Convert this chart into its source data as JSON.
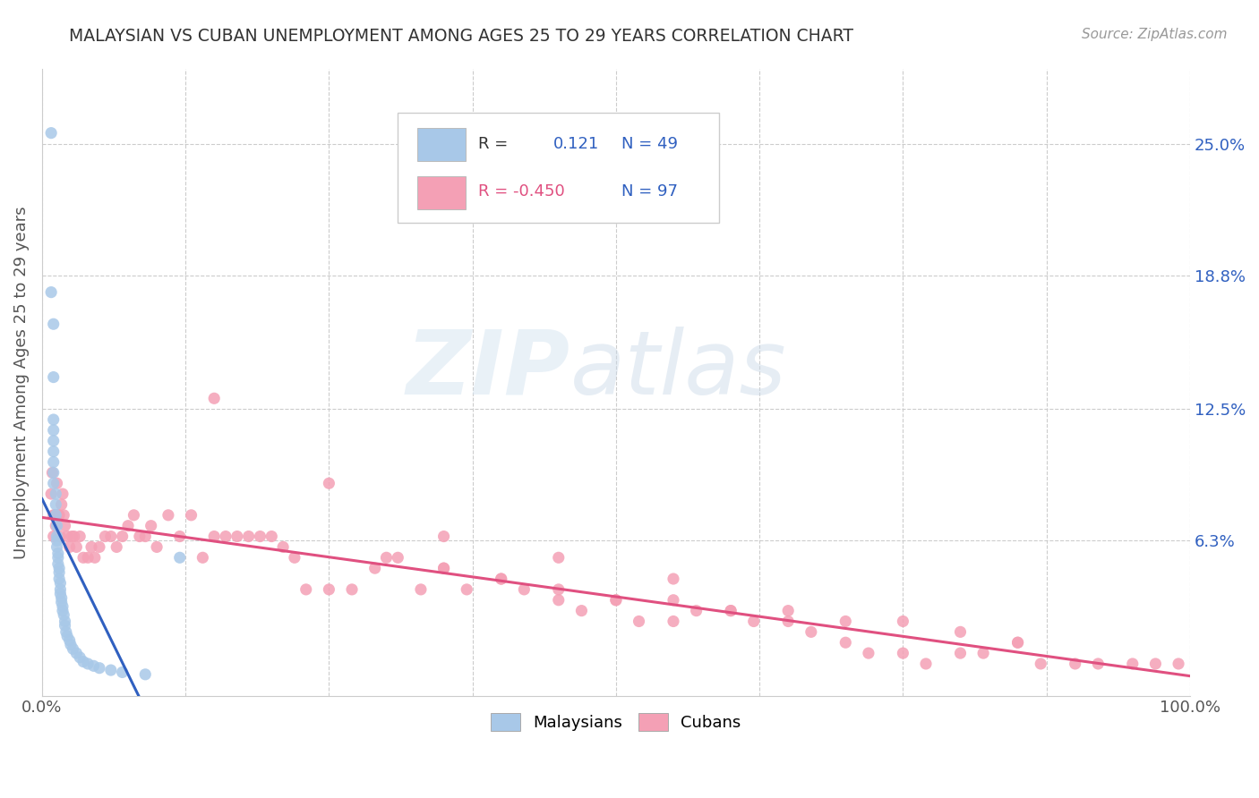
{
  "title": "MALAYSIAN VS CUBAN UNEMPLOYMENT AMONG AGES 25 TO 29 YEARS CORRELATION CHART",
  "source": "Source: ZipAtlas.com",
  "ylabel": "Unemployment Among Ages 25 to 29 years",
  "ytick_labels": [
    "25.0%",
    "18.8%",
    "12.5%",
    "6.3%"
  ],
  "ytick_values": [
    0.25,
    0.188,
    0.125,
    0.063
  ],
  "xlim": [
    0.0,
    1.0
  ],
  "ylim": [
    -0.01,
    0.285
  ],
  "malay_color": "#A8C8E8",
  "cuban_color": "#F4A0B5",
  "malay_line_color": "#3060C0",
  "cuban_line_color": "#E05080",
  "trend_dash_color": "#AABBD0",
  "background_color": "#FFFFFF",
  "malaysians_x": [
    0.008,
    0.008,
    0.01,
    0.01,
    0.01,
    0.01,
    0.01,
    0.01,
    0.01,
    0.01,
    0.01,
    0.012,
    0.012,
    0.012,
    0.013,
    0.013,
    0.013,
    0.013,
    0.014,
    0.014,
    0.014,
    0.015,
    0.015,
    0.015,
    0.016,
    0.016,
    0.016,
    0.017,
    0.017,
    0.018,
    0.018,
    0.019,
    0.02,
    0.02,
    0.021,
    0.022,
    0.024,
    0.025,
    0.027,
    0.03,
    0.033,
    0.036,
    0.04,
    0.045,
    0.05,
    0.06,
    0.07,
    0.09,
    0.12
  ],
  "malaysians_y": [
    0.255,
    0.18,
    0.165,
    0.14,
    0.12,
    0.115,
    0.11,
    0.105,
    0.1,
    0.095,
    0.09,
    0.085,
    0.08,
    0.075,
    0.07,
    0.065,
    0.063,
    0.06,
    0.057,
    0.055,
    0.052,
    0.05,
    0.048,
    0.045,
    0.043,
    0.04,
    0.038,
    0.036,
    0.034,
    0.032,
    0.03,
    0.028,
    0.025,
    0.023,
    0.02,
    0.018,
    0.016,
    0.014,
    0.012,
    0.01,
    0.008,
    0.006,
    0.005,
    0.004,
    0.003,
    0.002,
    0.001,
    0.0,
    0.055
  ],
  "cubans_x": [
    0.008,
    0.009,
    0.01,
    0.01,
    0.011,
    0.012,
    0.013,
    0.014,
    0.015,
    0.016,
    0.017,
    0.018,
    0.019,
    0.02,
    0.022,
    0.024,
    0.026,
    0.028,
    0.03,
    0.033,
    0.036,
    0.04,
    0.043,
    0.046,
    0.05,
    0.055,
    0.06,
    0.065,
    0.07,
    0.075,
    0.08,
    0.085,
    0.09,
    0.095,
    0.1,
    0.11,
    0.12,
    0.13,
    0.14,
    0.15,
    0.16,
    0.17,
    0.18,
    0.19,
    0.2,
    0.21,
    0.22,
    0.23,
    0.25,
    0.27,
    0.29,
    0.31,
    0.33,
    0.35,
    0.37,
    0.4,
    0.42,
    0.45,
    0.47,
    0.5,
    0.52,
    0.55,
    0.57,
    0.6,
    0.62,
    0.65,
    0.67,
    0.7,
    0.72,
    0.75,
    0.77,
    0.8,
    0.82,
    0.85,
    0.87,
    0.9,
    0.92,
    0.95,
    0.97,
    0.99,
    0.3,
    0.35,
    0.4,
    0.45,
    0.5,
    0.55,
    0.6,
    0.65,
    0.7,
    0.75,
    0.8,
    0.85,
    0.15,
    0.25,
    0.35,
    0.45,
    0.55
  ],
  "cubans_y": [
    0.085,
    0.095,
    0.075,
    0.065,
    0.075,
    0.07,
    0.09,
    0.075,
    0.075,
    0.065,
    0.08,
    0.085,
    0.075,
    0.07,
    0.065,
    0.06,
    0.065,
    0.065,
    0.06,
    0.065,
    0.055,
    0.055,
    0.06,
    0.055,
    0.06,
    0.065,
    0.065,
    0.06,
    0.065,
    0.07,
    0.075,
    0.065,
    0.065,
    0.07,
    0.06,
    0.075,
    0.065,
    0.075,
    0.055,
    0.065,
    0.065,
    0.065,
    0.065,
    0.065,
    0.065,
    0.06,
    0.055,
    0.04,
    0.04,
    0.04,
    0.05,
    0.055,
    0.04,
    0.05,
    0.04,
    0.045,
    0.04,
    0.035,
    0.03,
    0.035,
    0.025,
    0.025,
    0.03,
    0.03,
    0.025,
    0.025,
    0.02,
    0.015,
    0.01,
    0.01,
    0.005,
    0.01,
    0.01,
    0.015,
    0.005,
    0.005,
    0.005,
    0.005,
    0.005,
    0.005,
    0.055,
    0.05,
    0.045,
    0.04,
    0.035,
    0.035,
    0.03,
    0.03,
    0.025,
    0.025,
    0.02,
    0.015,
    0.13,
    0.09,
    0.065,
    0.055,
    0.045
  ],
  "legend_items": [
    {
      "color": "#A8C8E8",
      "text_r": "R =",
      "text_rv": "0.121",
      "text_n": "N = 49",
      "text_color": "#333333"
    },
    {
      "color": "#F4A0B5",
      "text_r": "R = -0.450",
      "text_n": "N = 97",
      "text_color": "#E05080"
    }
  ]
}
